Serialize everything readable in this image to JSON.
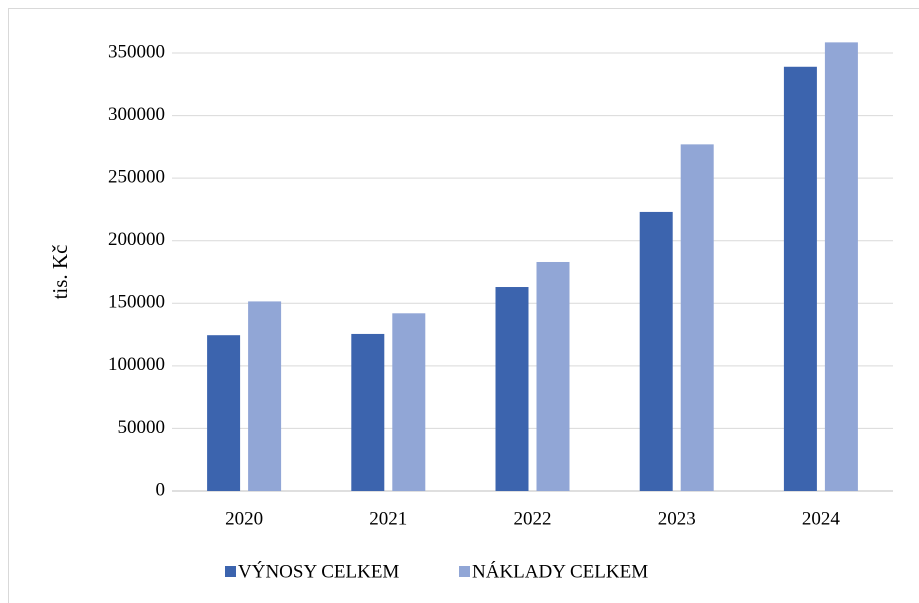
{
  "chart_data": {
    "type": "bar",
    "y_label": "tis. Kč",
    "categories": [
      "2020",
      "2021",
      "2022",
      "2023",
      "2024"
    ],
    "series": [
      {
        "name": "VÝNOSY CELKEM",
        "color": "#3c64ae",
        "values": [
          124500,
          125500,
          163000,
          223000,
          339000
        ]
      },
      {
        "name": "NÁKLADY CELKEM",
        "color": "#91a6d6",
        "values": [
          151500,
          142000,
          183000,
          277000,
          358500
        ]
      }
    ],
    "ylim": [
      0,
      350000
    ],
    "yticks": [
      0,
      50000,
      100000,
      150000,
      200000,
      250000,
      300000,
      350000
    ],
    "grid": true
  }
}
